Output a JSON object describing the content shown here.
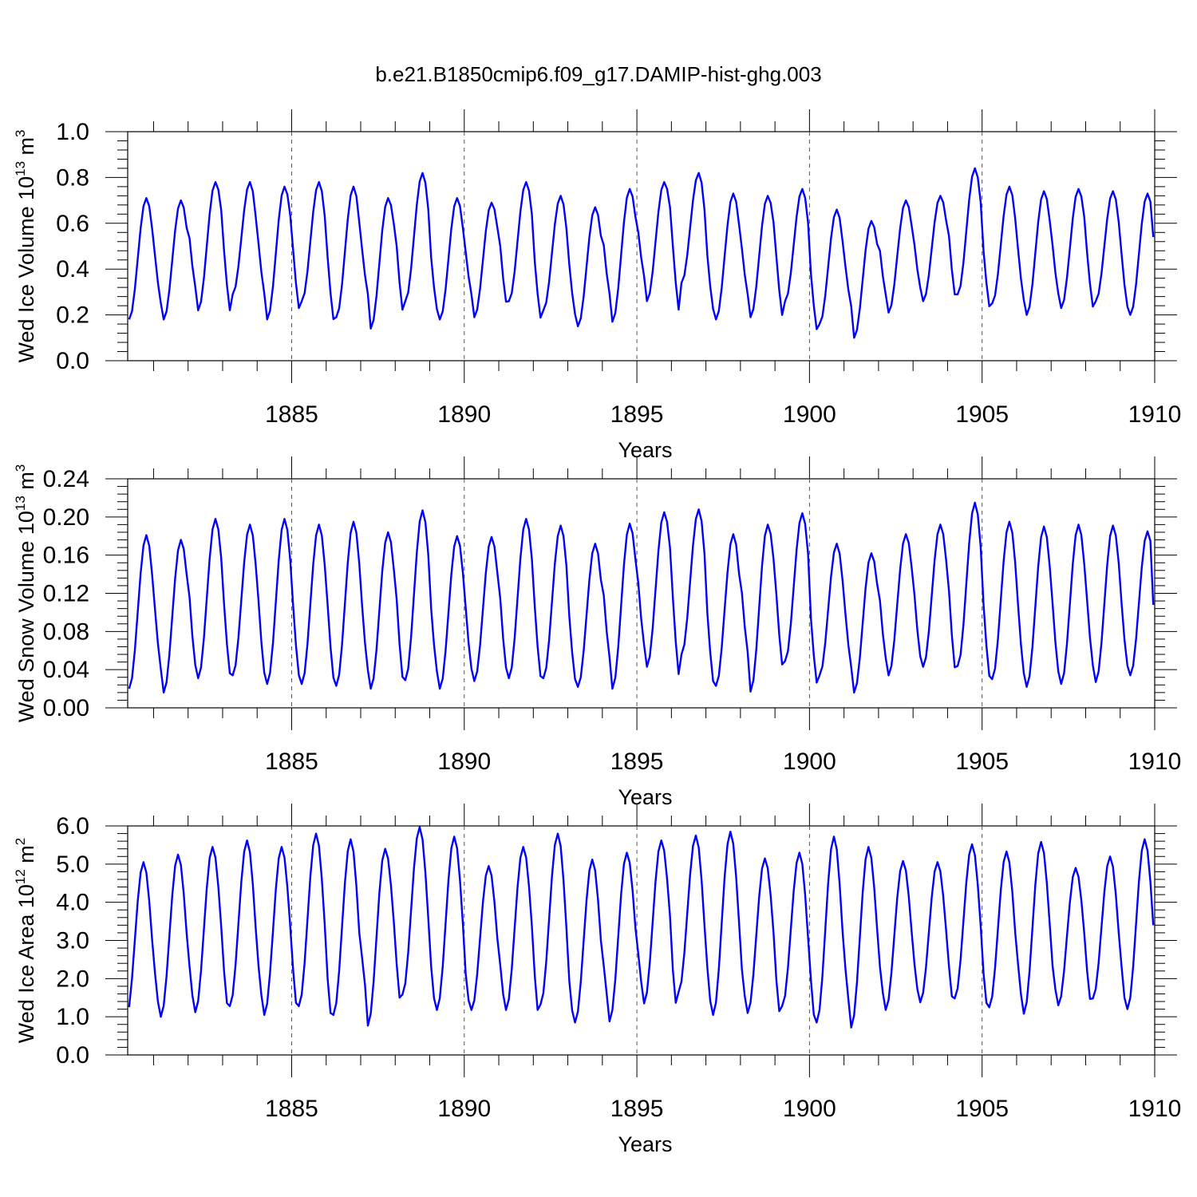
{
  "figure": {
    "title": "b.e21.B1850cmip6.f09_g17.DAMIP-hist-ghg.003",
    "line_color": "#0000ff"
  },
  "chart_data": [
    {
      "type": "line",
      "ylabel_main": "Wed Ice Volume 10",
      "ylabel_exp": "13",
      "ylabel_unit": " m",
      "ylabel_unit_exp": "3",
      "xlabel": "Years",
      "xlim": [
        1880.25,
        1910.0
      ],
      "ylim": [
        0.0,
        1.0
      ],
      "x_ticks": [
        1885,
        1890,
        1895,
        1900,
        1905,
        1910
      ],
      "x_tick_labels": [
        "1885",
        "1890",
        "1895",
        "1900",
        "1905",
        "1910"
      ],
      "y_ticks": [
        0.0,
        0.2,
        0.4,
        0.6,
        0.8,
        1.0
      ],
      "y_tick_labels": [
        "0.0",
        "0.2",
        "0.4",
        "0.6",
        "0.8",
        "1.0"
      ],
      "y_minor_step": 0.04,
      "dashed_vertical_lines": [
        1885,
        1890,
        1895,
        1900,
        1905
      ],
      "min_month": 3,
      "peaks": [
        0.71,
        0.7,
        0.78,
        0.78,
        0.76,
        0.78,
        0.76,
        0.71,
        0.82,
        0.71,
        0.69,
        0.78,
        0.72,
        0.67,
        0.75,
        0.78,
        0.82,
        0.73,
        0.72,
        0.75,
        0.66,
        0.61,
        0.7,
        0.72,
        0.84,
        0.76,
        0.74,
        0.75,
        0.74,
        0.73
      ],
      "troughs": [
        0.18,
        0.18,
        0.22,
        0.29,
        0.18,
        0.26,
        0.19,
        0.14,
        0.26,
        0.18,
        0.19,
        0.26,
        0.22,
        0.15,
        0.17,
        0.26,
        0.34,
        0.18,
        0.19,
        0.26,
        0.16,
        0.1,
        0.21,
        0.26,
        0.29,
        0.25,
        0.2,
        0.23,
        0.26,
        0.2
      ],
      "end_value": 0.54
    },
    {
      "type": "line",
      "ylabel_main": "Wed Snow Volume 10",
      "ylabel_exp": "13",
      "ylabel_unit": " m",
      "ylabel_unit_exp": "3",
      "xlabel": "Years",
      "xlim": [
        1880.25,
        1910.0
      ],
      "ylim": [
        0.0,
        0.24
      ],
      "x_ticks": [
        1885,
        1890,
        1895,
        1900,
        1905,
        1910
      ],
      "x_tick_labels": [
        "1885",
        "1890",
        "1895",
        "1900",
        "1905",
        "1910"
      ],
      "y_ticks": [
        0.0,
        0.04,
        0.08,
        0.12,
        0.16,
        0.2,
        0.24
      ],
      "y_tick_labels": [
        "0.00",
        "0.04",
        "0.08",
        "0.12",
        "0.16",
        "0.20",
        "0.24"
      ],
      "y_minor_step": 0.008,
      "dashed_vertical_lines": [
        1885,
        1890,
        1895,
        1900,
        1905
      ],
      "min_month": 3,
      "peaks": [
        0.181,
        0.176,
        0.198,
        0.192,
        0.198,
        0.192,
        0.195,
        0.184,
        0.207,
        0.18,
        0.179,
        0.198,
        0.191,
        0.172,
        0.193,
        0.205,
        0.208,
        0.182,
        0.192,
        0.204,
        0.172,
        0.162,
        0.182,
        0.192,
        0.215,
        0.195,
        0.19,
        0.192,
        0.191,
        0.185
      ],
      "troughs": [
        0.02,
        0.016,
        0.031,
        0.034,
        0.025,
        0.025,
        0.023,
        0.02,
        0.029,
        0.02,
        0.028,
        0.031,
        0.031,
        0.022,
        0.02,
        0.043,
        0.056,
        0.023,
        0.017,
        0.049,
        0.034,
        0.016,
        0.034,
        0.043,
        0.044,
        0.03,
        0.022,
        0.025,
        0.027,
        0.034
      ],
      "end_value": 0.108
    },
    {
      "type": "line",
      "ylabel_main": "Wed Ice Area 10",
      "ylabel_exp": "12",
      "ylabel_unit": " m",
      "ylabel_unit_exp": "2",
      "xlabel": "Years",
      "xlim": [
        1880.25,
        1910.0
      ],
      "ylim": [
        0.0,
        6.0
      ],
      "x_ticks": [
        1885,
        1890,
        1895,
        1900,
        1905,
        1910
      ],
      "x_tick_labels": [
        "1885",
        "1890",
        "1895",
        "1900",
        "1905",
        "1910"
      ],
      "y_ticks": [
        0.0,
        1.0,
        2.0,
        3.0,
        4.0,
        5.0,
        6.0
      ],
      "y_tick_labels": [
        "0.0",
        "1.0",
        "2.0",
        "3.0",
        "4.0",
        "5.0",
        "6.0"
      ],
      "y_minor_step": 0.2,
      "dashed_vertical_lines": [
        1885,
        1890,
        1895,
        1900,
        1905
      ],
      "min_month": 2,
      "peaks": [
        5.05,
        5.25,
        5.45,
        5.62,
        5.45,
        5.8,
        5.65,
        5.4,
        5.97,
        5.72,
        4.95,
        5.45,
        5.8,
        5.12,
        5.3,
        5.62,
        5.75,
        5.85,
        5.15,
        5.3,
        5.72,
        5.45,
        5.08,
        5.05,
        5.52,
        5.33,
        5.58,
        4.9,
        5.2,
        5.65
      ],
      "troughs": [
        0.98,
        1.0,
        1.12,
        1.28,
        1.05,
        1.28,
        1.05,
        0.77,
        1.58,
        1.18,
        1.18,
        1.18,
        1.32,
        0.85,
        0.88,
        1.35,
        1.65,
        1.05,
        1.1,
        1.28,
        0.85,
        0.72,
        1.18,
        1.38,
        1.48,
        1.25,
        1.08,
        1.3,
        1.48,
        1.2
      ],
      "end_value": 3.4
    }
  ]
}
